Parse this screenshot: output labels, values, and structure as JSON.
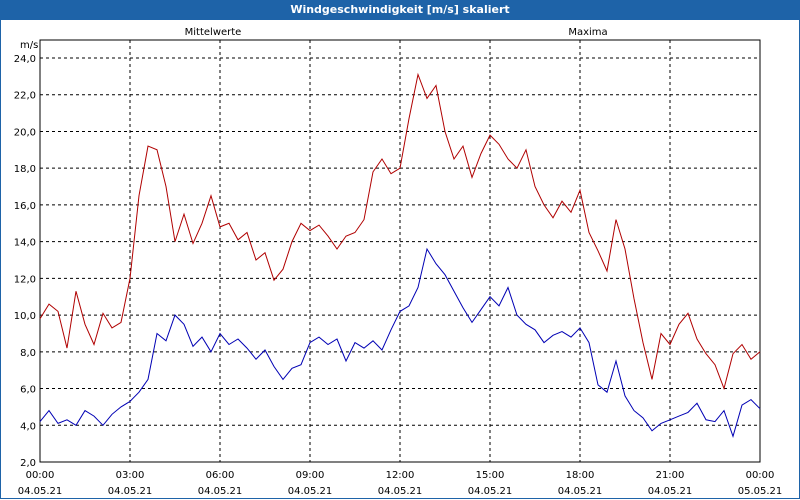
{
  "window": {
    "title": "Windgeschwindigkeit [m/s] skaliert"
  },
  "colors": {
    "titlebar": "#1e63a8",
    "mittelwerte": "#0000b4",
    "maxima": "#b00000",
    "grid": "#000000"
  },
  "chart_data": {
    "type": "line",
    "title": "Windgeschwindigkeit [m/s] skaliert",
    "ylabel": "m/s",
    "ylim": [
      2.0,
      24.0
    ],
    "yticks": [
      "2,0",
      "4,0",
      "6,0",
      "8,0",
      "10,0",
      "12,0",
      "14,0",
      "16,0",
      "18,0",
      "20,0",
      "22,0",
      "24,0"
    ],
    "xlim": [
      "04.05.21 00:00",
      "05.05.21 00:00"
    ],
    "xticks": [
      {
        "time": "00:00",
        "date": "04.05.21"
      },
      {
        "time": "03:00",
        "date": "04.05.21"
      },
      {
        "time": "06:00",
        "date": "04.05.21"
      },
      {
        "time": "09:00",
        "date": "04.05.21"
      },
      {
        "time": "12:00",
        "date": "04.05.21"
      },
      {
        "time": "15:00",
        "date": "04.05.21"
      },
      {
        "time": "18:00",
        "date": "04.05.21"
      },
      {
        "time": "21:00",
        "date": "04.05.21"
      },
      {
        "time": "00:00",
        "date": "05.05.21"
      }
    ],
    "grid": true,
    "x_hours": [
      0,
      0.3,
      0.6,
      0.9,
      1.2,
      1.5,
      1.8,
      2.1,
      2.4,
      2.7,
      3,
      3.3,
      3.6,
      3.9,
      4.2,
      4.5,
      4.8,
      5.1,
      5.4,
      5.7,
      6,
      6.3,
      6.6,
      6.9,
      7.2,
      7.5,
      7.8,
      8.1,
      8.4,
      8.7,
      9,
      9.3,
      9.6,
      9.9,
      10.2,
      10.5,
      10.8,
      11.1,
      11.4,
      11.7,
      12,
      12.3,
      12.6,
      12.9,
      13.2,
      13.5,
      13.8,
      14.1,
      14.4,
      14.7,
      15,
      15.3,
      15.6,
      15.9,
      16.2,
      16.5,
      16.8,
      17.1,
      17.4,
      17.7,
      18,
      18.3,
      18.6,
      18.9,
      19.2,
      19.5,
      19.8,
      20.1,
      20.4,
      20.7,
      21,
      21.3,
      21.6,
      21.9,
      22.2,
      22.5,
      22.8,
      23.1,
      23.4,
      23.7,
      24
    ],
    "series": [
      {
        "name": "Mittelwerte",
        "color": "#0000b4",
        "values": [
          4.2,
          4.8,
          4.1,
          4.3,
          4.0,
          4.8,
          4.5,
          4.0,
          4.6,
          5.0,
          5.3,
          5.8,
          6.5,
          9.0,
          8.6,
          10.0,
          9.5,
          8.3,
          8.8,
          8.0,
          9.0,
          8.4,
          8.7,
          8.2,
          7.6,
          8.1,
          7.2,
          6.5,
          7.1,
          7.3,
          8.5,
          8.8,
          8.4,
          8.7,
          7.5,
          8.5,
          8.2,
          8.6,
          8.1,
          9.2,
          10.2,
          10.5,
          11.5,
          13.6,
          12.8,
          12.2,
          11.3,
          10.4,
          9.6,
          10.3,
          11.0,
          10.5,
          11.5,
          10.0,
          9.5,
          9.2,
          8.5,
          8.9,
          9.1,
          8.8,
          9.3,
          8.5,
          6.2,
          5.8,
          7.5,
          5.6,
          4.8,
          4.4,
          3.7,
          4.1,
          4.3,
          4.5,
          4.7,
          5.2,
          4.3,
          4.2,
          4.8,
          3.4,
          5.1,
          5.4,
          4.9
        ]
      },
      {
        "name": "Maxima",
        "color": "#b00000",
        "values": [
          9.8,
          10.6,
          10.2,
          8.2,
          11.3,
          9.5,
          8.4,
          10.1,
          9.3,
          9.6,
          12.0,
          16.5,
          19.2,
          19.0,
          17.0,
          14.0,
          15.5,
          13.9,
          15.0,
          16.5,
          14.8,
          15.0,
          14.1,
          14.5,
          13.0,
          13.4,
          11.9,
          12.5,
          14.0,
          15.0,
          14.6,
          14.9,
          14.3,
          13.6,
          14.3,
          14.5,
          15.2,
          17.8,
          18.5,
          17.7,
          18.0,
          20.7,
          23.1,
          21.8,
          22.5,
          20.0,
          18.5,
          19.2,
          17.5,
          18.8,
          19.8,
          19.3,
          18.5,
          18.0,
          19.0,
          17.0,
          16.0,
          15.3,
          16.2,
          15.6,
          16.8,
          14.5,
          13.5,
          12.4,
          15.2,
          13.6,
          10.9,
          8.5,
          6.5,
          9.0,
          8.4,
          9.5,
          10.1,
          8.7,
          7.9,
          7.3,
          6.0,
          7.9,
          8.4,
          7.6,
          8.0
        ]
      }
    ]
  }
}
